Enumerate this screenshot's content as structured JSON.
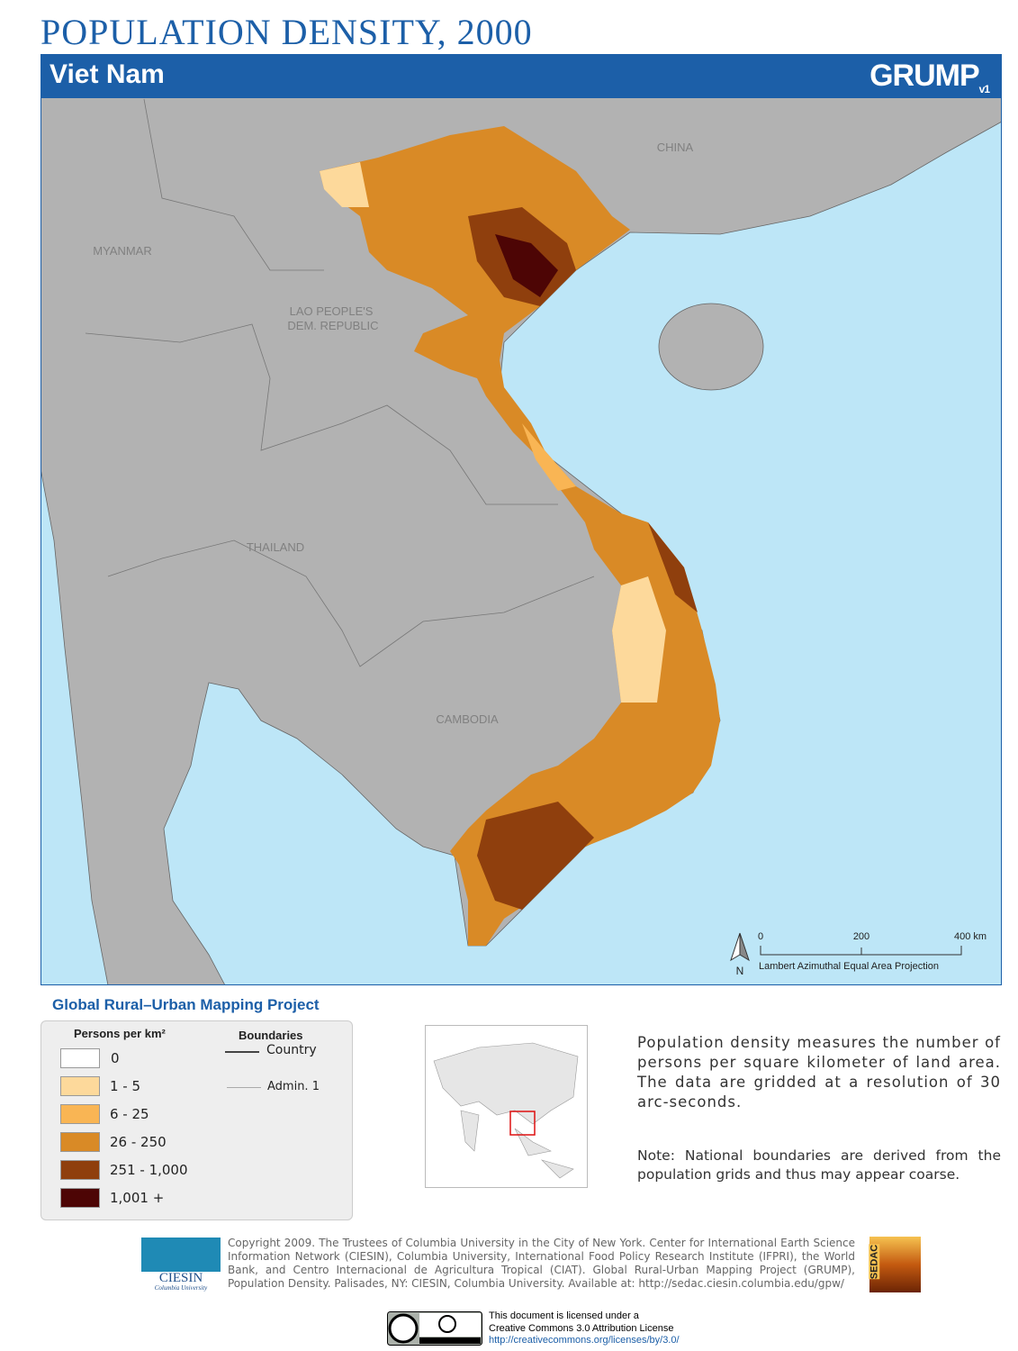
{
  "header": {
    "title": "POPULATION DENSITY, 2000",
    "country": "Viet Nam",
    "logo": "GRUMP",
    "logo_version": "v1"
  },
  "map": {
    "labels": [
      "CHINA",
      "MYANMAR",
      "LAO PEOPLE'S",
      "DEM. REPUBLIC",
      "THAILAND",
      "CAMBODIA"
    ],
    "scale": [
      "0",
      "200",
      "400 km"
    ],
    "north": "N",
    "projection": "Lambert Azimuthal Equal Area Projection"
  },
  "legend": {
    "project": "Global Rural–Urban Mapping Project",
    "density_title": "Persons per km²",
    "classes": [
      {
        "label": "0",
        "color": "#ffffff"
      },
      {
        "label": "1 - 5",
        "color": "#fdd99b"
      },
      {
        "label": "6 - 25",
        "color": "#f9b554"
      },
      {
        "label": "26 - 250",
        "color": "#d98a26"
      },
      {
        "label": "251 - 1,000",
        "color": "#8f3f0d"
      },
      {
        "label": "1,001 +",
        "color": "#4d0505"
      }
    ],
    "boundaries_title": "Boundaries",
    "boundaries": [
      "Country",
      "Admin. 1"
    ]
  },
  "description": "Population density measures the number of persons per square kilometer of land area. The data are gridded at a resolution of 30 arc-seconds.",
  "note": "Note: National boundaries are derived from the population grids and thus may appear coarse.",
  "footer": {
    "copyright": "Copyright 2009. The Trustees of Columbia University in the City of New York. Center for International Earth Science Information Network (CIESIN), Columbia University, International Food Policy Research Institute (IFPRI), the World Bank, and Centro Internacional de Agricultura Tropical (CIAT). Global Rural-Urban Mapping Project (GRUMP), Population Density. Palisades, NY: CIESIN, Columbia University. Available at: http://sedac.ciesin.columbia.edu/gpw/",
    "ciesin": "CIESIN",
    "ciesin_sub": "Columbia University",
    "sedac": "SEDAC",
    "license": [
      "This document is licensed under a",
      "Creative Commons 3.0 Attribution License",
      "http://creativecommons.org/licenses/by/3.0/"
    ]
  }
}
